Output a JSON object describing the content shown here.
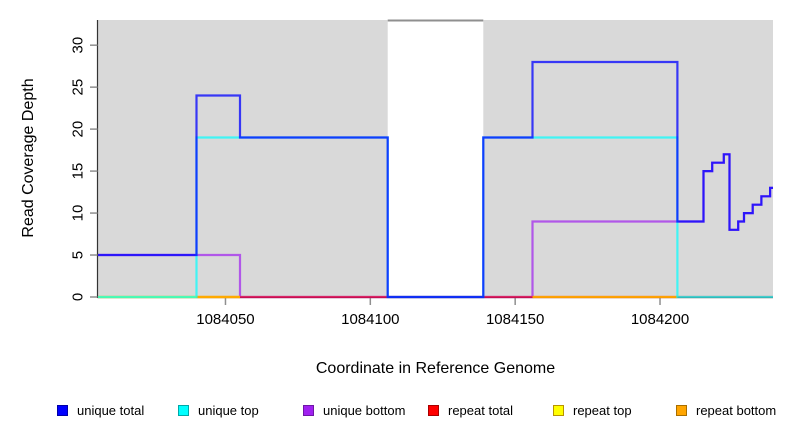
{
  "chart_data": {
    "type": "line",
    "title": "",
    "xlabel": "Coordinate in Reference Genome",
    "ylabel": "Read Coverage Depth",
    "xlim": [
      1084006,
      1084239
    ],
    "ylim": [
      0,
      33
    ],
    "x_ticks": [
      1084050,
      1084100,
      1084150,
      1084200
    ],
    "y_ticks": [
      0,
      5,
      10,
      15,
      20,
      25,
      30
    ],
    "grid": false,
    "plot_background_color": "#d9d9d9",
    "gap_region": {
      "x_start": 1084106,
      "x_end": 1084139,
      "color": "#ffffff",
      "top_border_color": "#8f8f8f"
    },
    "legend_position": "bottom",
    "series": [
      {
        "name": "unique bottom",
        "stroke": "rgba(160,32,240,0.7)",
        "segments": [
          {
            "x_end": 1084239,
            "points": [
              [
                1084006,
                5
              ],
              [
                1084055,
                0
              ],
              [
                1084156,
                9
              ],
              [
                1084215,
                15
              ],
              [
                1084218,
                16
              ],
              [
                1084222,
                17
              ],
              [
                1084224,
                8
              ],
              [
                1084227,
                9
              ],
              [
                1084229,
                10
              ],
              [
                1084232,
                11
              ],
              [
                1084235,
                12
              ],
              [
                1084238,
                13
              ]
            ]
          }
        ]
      },
      {
        "name": "repeat total",
        "stroke": "rgba(255,0,0,0.55)",
        "segments": [
          {
            "x_end": 1084239,
            "points": [
              [
                1084006,
                0
              ]
            ]
          }
        ]
      },
      {
        "name": "repeat top",
        "stroke": "rgba(255,255,0,0.9)",
        "segments": [
          {
            "x_end": 1084055,
            "points": [
              [
                1084006,
                0
              ]
            ]
          }
        ]
      },
      {
        "name": "repeat bottom",
        "stroke": "rgba(255,165,0,0.95)",
        "segments": [
          {
            "x_end": 1084055,
            "points": [
              [
                1084040,
                0
              ]
            ]
          },
          {
            "x_end": 1084206,
            "points": [
              [
                1084156,
                0
              ]
            ]
          }
        ]
      },
      {
        "name": "unique top",
        "stroke": "rgba(0,255,255,0.7)",
        "segments": [
          {
            "x_end": 1084239,
            "points": [
              [
                1084006,
                0
              ],
              [
                1084040,
                19
              ],
              [
                1084106,
                0
              ],
              [
                1084139,
                19
              ],
              [
                1084206,
                0
              ]
            ]
          }
        ]
      },
      {
        "name": "unique total",
        "stroke": "rgba(0,0,255,0.75)",
        "segments": [
          {
            "x_end": 1084239,
            "points": [
              [
                1084006,
                5
              ],
              [
                1084040,
                24
              ],
              [
                1084055,
                19
              ],
              [
                1084106,
                0
              ],
              [
                1084139,
                19
              ],
              [
                1084156,
                28
              ],
              [
                1084206,
                9
              ],
              [
                1084215,
                15
              ],
              [
                1084218,
                16
              ],
              [
                1084222,
                17
              ],
              [
                1084224,
                8
              ],
              [
                1084227,
                9
              ],
              [
                1084229,
                10
              ],
              [
                1084232,
                11
              ],
              [
                1084235,
                12
              ],
              [
                1084238,
                13
              ]
            ]
          }
        ]
      }
    ],
    "legend": {
      "items": [
        {
          "label": "unique total",
          "fill": "#0000FF",
          "border": "#0000A8"
        },
        {
          "label": "unique top",
          "fill": "#00FFFF",
          "border": "#00A8A8"
        },
        {
          "label": "unique bottom",
          "fill": "#A020F0",
          "border": "#6E16A6"
        },
        {
          "label": "repeat total",
          "fill": "#FF0000",
          "border": "#A80000"
        },
        {
          "label": "repeat top",
          "fill": "#FFFF00",
          "border": "#B89400"
        },
        {
          "label": "repeat bottom",
          "fill": "#FFA500",
          "border": "#A86E00"
        }
      ]
    }
  }
}
